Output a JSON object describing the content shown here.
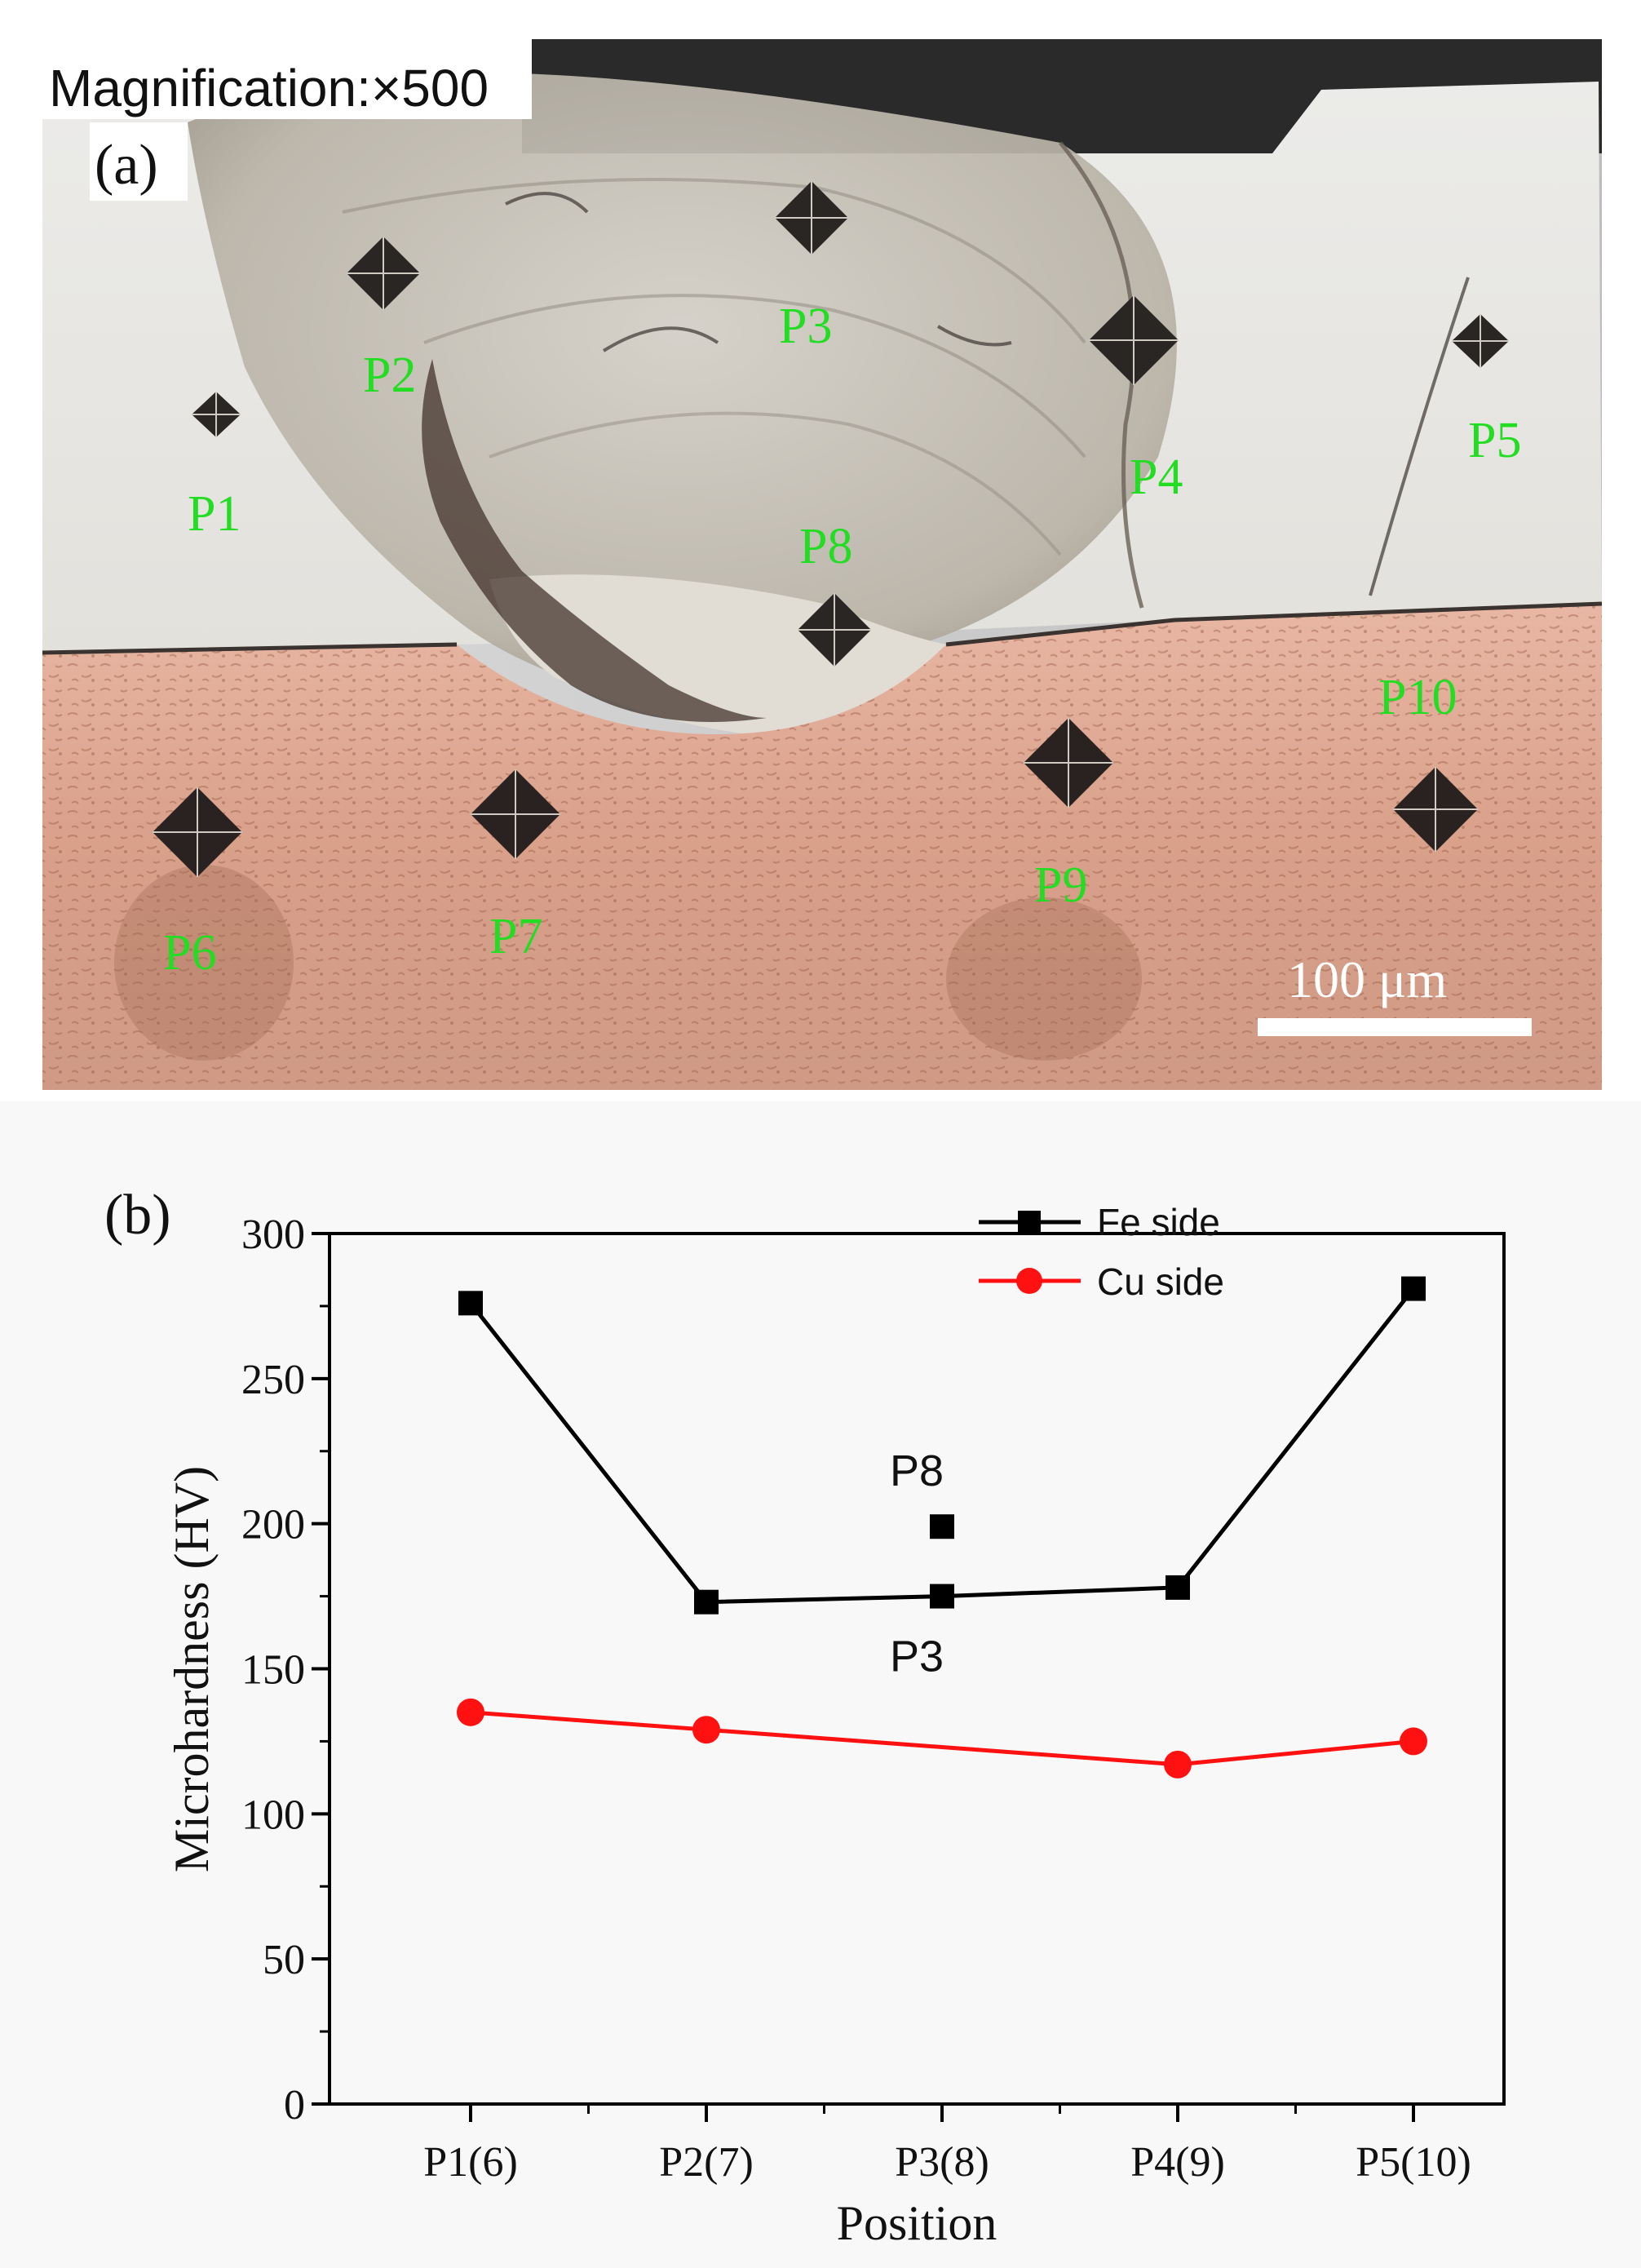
{
  "panel_a": {
    "magnification": "Magnification:×500",
    "panel_label": "(a)",
    "scale_bar": "100 μm",
    "points": [
      "P1",
      "P2",
      "P3",
      "P4",
      "P5",
      "P6",
      "P7",
      "P8",
      "P9",
      "P10"
    ]
  },
  "panel_b": {
    "panel_label": "(b)",
    "annotations": [
      "P8",
      "P3"
    ]
  },
  "chart_data": {
    "type": "line",
    "categories": [
      "P1(6)",
      "P2(7)",
      "P3(8)",
      "P4(9)",
      "P5(10)"
    ],
    "series": [
      {
        "name": "Fe side",
        "color": "#000000",
        "marker": "square",
        "values": [
          276,
          173,
          175,
          178,
          281
        ]
      },
      {
        "name": "Cu side",
        "color": "#ff1111",
        "marker": "circle",
        "values": [
          135,
          129,
          null,
          117,
          125
        ]
      }
    ],
    "extra_points": [
      {
        "label": "P8",
        "category": "P3(8)",
        "value": 199
      }
    ],
    "xlabel": "Position",
    "ylabel": "Microhardness (HV)",
    "ylim": [
      0,
      300
    ],
    "yticks": [
      0,
      50,
      100,
      150,
      200,
      250,
      300
    ],
    "legend_position": "top-right",
    "grid": false
  }
}
